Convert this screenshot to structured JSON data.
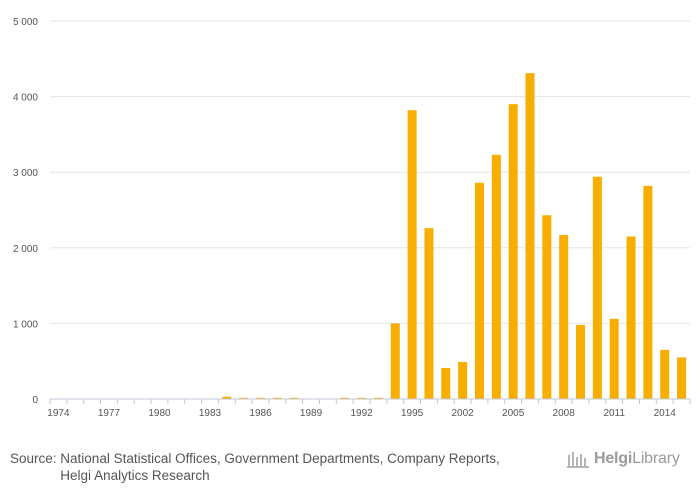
{
  "chart_data": {
    "type": "bar",
    "title": "",
    "xlabel": "",
    "ylabel": "",
    "ylim": [
      0,
      5000
    ],
    "yticks": [
      0,
      1000,
      2000,
      3000,
      4000,
      5000
    ],
    "ytick_labels": [
      "0",
      "1 000",
      "2 000",
      "3 000",
      "4 000",
      "5 000"
    ],
    "xtick_labels": [
      "1974",
      "1977",
      "1980",
      "1983",
      "1986",
      "1989",
      "1992",
      "1995",
      "2002",
      "2005",
      "2008",
      "2011",
      "2014"
    ],
    "bar_color": "#F7AE00",
    "categories": [
      "1974",
      "1975",
      "1976",
      "1977",
      "1978",
      "1979",
      "1980",
      "1981",
      "1982",
      "1983",
      "1984",
      "1985",
      "1986",
      "1987",
      "1988",
      "1989",
      "1990",
      "1991",
      "1992",
      "1993",
      "1994",
      "1995",
      "1996",
      "2000",
      "2002",
      "2003",
      "2004",
      "2005",
      "2006",
      "2007",
      "2008",
      "2009",
      "2010",
      "2011",
      "2012",
      "2013",
      "2014",
      "2015"
    ],
    "values": [
      0,
      0,
      0,
      0,
      0,
      0,
      0,
      0,
      0,
      0,
      30,
      15,
      15,
      15,
      15,
      0,
      0,
      15,
      15,
      15,
      1000,
      3820,
      2260,
      410,
      490,
      2860,
      3230,
      3900,
      4310,
      2430,
      2170,
      980,
      2940,
      1060,
      2150,
      2820,
      650,
      550
    ]
  },
  "footer": {
    "source_label": "Source:",
    "source_text": "National Statistical Offices, Government Departments, Company Reports, Helgi Analytics Research"
  },
  "logo": {
    "brand_bold": "Helgi",
    "brand_light": "Library"
  }
}
